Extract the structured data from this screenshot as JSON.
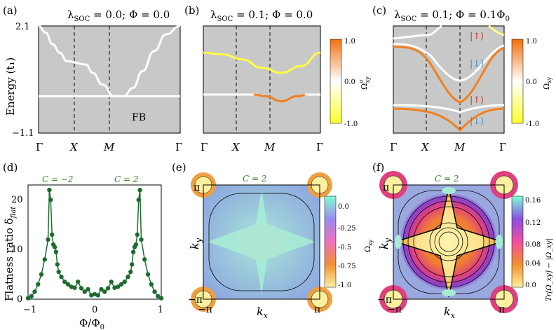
{
  "colors": {
    "panel_bg": "#c8c8c8",
    "white_band": "#ffffff",
    "yellow": "#ffff40",
    "orange": "#f08020",
    "green": "#1e6b2e",
    "chern_green": "#2e8b1e",
    "red_arrow": "#c0392b",
    "blue_arrow": "#3a8fd0"
  },
  "chart_data": [
    {
      "id": "a",
      "type": "line",
      "panel_label": "(a)",
      "title": "λ_SOC = 0.0; Φ = 0.0",
      "title_parts": {
        "lam": "λ",
        "sub": "SOC",
        "rest": " = 0.0; Φ = 0.0"
      },
      "ylabel": "Energy  (t₁)",
      "ytick_labels": [
        "2.1",
        "−1.1"
      ],
      "ylim": [
        -1.1,
        2.1
      ],
      "x_ticks": [
        "Γ",
        "X",
        "M",
        "Γ"
      ],
      "annotation": "FB",
      "series": [
        {
          "name": "dispersive",
          "color": "white",
          "x": [
            0,
            0.15,
            0.3,
            0.45,
            0.6,
            1,
            1.15,
            1.35,
            1.6,
            1.8,
            2,
            2.2,
            2.45,
            2.7,
            3
          ],
          "y": [
            2.1,
            1.9,
            1.55,
            1.3,
            1.05,
            0.95,
            0.7,
            0.35,
            0.0,
            0.0,
            0.25,
            0.75,
            1.35,
            1.85,
            2.1
          ]
        },
        {
          "name": "flat band",
          "color": "white",
          "x": [
            0,
            3
          ],
          "y": [
            0.0,
            0.0
          ]
        }
      ]
    },
    {
      "id": "b",
      "type": "line",
      "panel_label": "(b)",
      "title_parts": {
        "lam": "λ",
        "sub": "SOC",
        "rest": " = 0.1; Φ = 0.0"
      },
      "x_ticks": [
        "Γ",
        "X",
        "M",
        "Γ"
      ],
      "colorbar": {
        "label": "Ω",
        "label_sup": "σ",
        "label_sub": "xy",
        "ticks": [
          "1.0",
          "0.0",
          "-1.0"
        ]
      },
      "series": [
        {
          "name": "upper band",
          "color": "yellow",
          "x": [
            0,
            0.5,
            1,
            1.5,
            2,
            2.5,
            3
          ],
          "y": [
            1.3,
            1.25,
            1.1,
            0.85,
            0.7,
            0.9,
            1.3
          ]
        },
        {
          "name": "lower band white",
          "color": "white",
          "x": [
            0,
            1.4
          ],
          "y": [
            0.05,
            0.05
          ]
        },
        {
          "name": "lower band orange",
          "color": "orange",
          "x": [
            1.3,
            1.6,
            2,
            2.4,
            2.7
          ],
          "y": [
            0.05,
            0.0,
            -0.15,
            0.0,
            0.05
          ]
        },
        {
          "name": "lower band tail",
          "color": "white",
          "x": [
            2.6,
            3
          ],
          "y": [
            0.05,
            0.05
          ]
        }
      ]
    },
    {
      "id": "c",
      "type": "line",
      "panel_label": "(c)",
      "title_parts": {
        "lam": "λ",
        "sub": "SOC",
        "rest": " = 0.1; Φ = 0.1Φ",
        "tail_sub": "0"
      },
      "x_ticks": [
        "Γ",
        "X",
        "M",
        "Γ"
      ],
      "colorbar": {
        "label": "Ω",
        "label_sub": "xy",
        "ticks": [
          "1.0",
          "0.0",
          "-1.0"
        ]
      },
      "annotations": [
        "|↑⟩",
        "|↓⟩",
        "|↑⟩",
        "|↓⟩"
      ]
    },
    {
      "id": "d",
      "type": "scatter",
      "panel_label": "(d)",
      "xlabel": "Φ/Φ",
      "xlabel_sub": "0",
      "ylabel": "Flatness ratio δ",
      "ylabel_sub": "flat",
      "xlim": [
        -1,
        1
      ],
      "ylim": [
        0,
        23
      ],
      "xtick_labels": [
        "−1",
        "0",
        "1"
      ],
      "ytick_labels": [
        "0",
        "10",
        "20"
      ],
      "chern_labels": [
        "C = −2",
        "C = 2"
      ],
      "x": [
        -1,
        -0.95,
        -0.9,
        -0.85,
        -0.8,
        -0.75,
        -0.7,
        -0.68,
        -0.66,
        -0.64,
        -0.62,
        -0.6,
        -0.58,
        -0.56,
        -0.54,
        -0.5,
        -0.45,
        -0.4,
        -0.35,
        -0.3,
        -0.25,
        -0.2,
        -0.15,
        -0.1,
        -0.05,
        0,
        0.05,
        0.1,
        0.15,
        0.2,
        0.25,
        0.3,
        0.35,
        0.4,
        0.45,
        0.5,
        0.54,
        0.56,
        0.58,
        0.6,
        0.62,
        0.64,
        0.66,
        0.68,
        0.7,
        0.75,
        0.8,
        0.85,
        0.9,
        0.95,
        1
      ],
      "y": [
        0.2,
        0.6,
        1.5,
        3,
        5,
        8,
        12,
        22,
        20,
        13,
        11,
        10.5,
        9.5,
        7,
        5.5,
        4.5,
        3.5,
        3,
        2.5,
        2.3,
        3.5,
        2.2,
        1.5,
        2,
        0.8,
        1,
        0.8,
        2,
        1.5,
        2.2,
        3.5,
        2.3,
        2.5,
        3,
        3.5,
        4.5,
        5.5,
        7,
        9.5,
        10.5,
        11,
        13,
        20,
        22,
        12,
        8,
        5,
        3,
        1.5,
        0.6,
        0.2
      ]
    },
    {
      "id": "e",
      "type": "heatmap",
      "panel_label": "(e)",
      "xlabel": "k",
      "xlabel_sub": "x",
      "ylabel": "k",
      "ylabel_sub": "y",
      "xtick_labels": [
        "−π",
        "π"
      ],
      "ytick_labels": [
        "π",
        "−π"
      ],
      "chern_label": "C = 2",
      "colorbar": {
        "label": "Ω",
        "label_sub": "xy",
        "ticks": [
          "0.0",
          "-0.25",
          "-0.5",
          "-0.75",
          "-1.0"
        ]
      }
    },
    {
      "id": "f",
      "type": "heatmap",
      "panel_label": "(f)",
      "xlabel": "k",
      "xlabel_sub": "x",
      "ylabel": "k",
      "ylabel_sub": "y",
      "xtick_labels": [
        "−π",
        "π"
      ],
      "ytick_labels": [
        "π",
        "−π"
      ],
      "chern_label": "C = 2",
      "colorbar": {
        "label": "Tr[Ω_xy] − |Ω_xy|",
        "ticks": [
          "0.16",
          "0.12",
          "0.08",
          "0.04",
          "0.0"
        ]
      }
    }
  ]
}
